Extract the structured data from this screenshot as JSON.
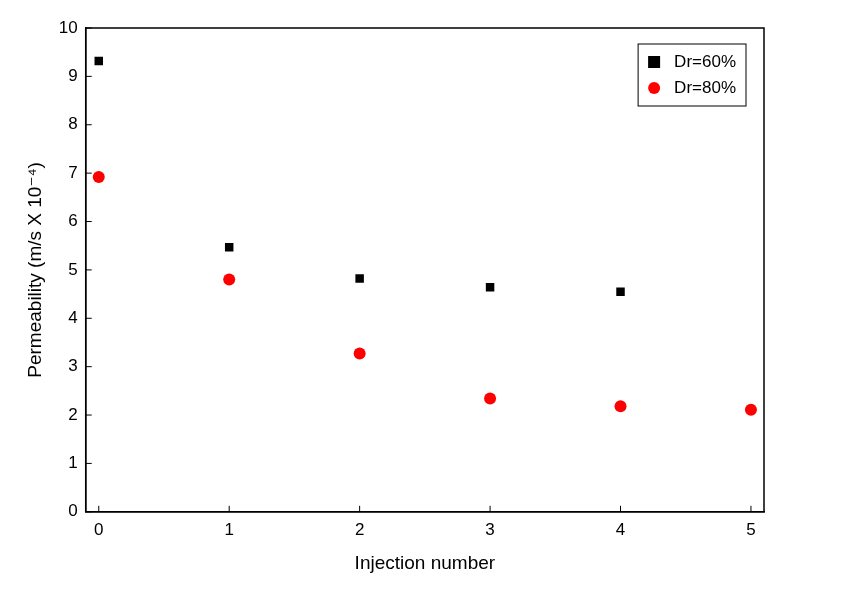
{
  "chart_data": {
    "type": "scatter",
    "x_label": "Injection number",
    "y_label": "Permeability (m/s X 10⁻⁴)",
    "x": [
      0,
      1,
      2,
      3,
      4,
      5
    ],
    "series": [
      {
        "name": "Dr=60%",
        "color": "#000000",
        "marker": "square",
        "values": [
          9.32,
          5.47,
          4.82,
          4.64,
          4.55,
          null
        ]
      },
      {
        "name": "Dr=80%",
        "color": "#ff0000",
        "marker": "circle",
        "values": [
          6.92,
          4.8,
          3.27,
          2.34,
          2.18,
          2.11
        ]
      }
    ],
    "xlim": [
      -0.1,
      5.1
    ],
    "xticks": [
      0,
      1,
      2,
      3,
      4,
      5
    ],
    "ylim": [
      0,
      10
    ],
    "yticks": [
      0,
      1,
      2,
      3,
      4,
      5,
      6,
      7,
      8,
      9,
      10
    ],
    "grid": false,
    "legend": "upper right"
  }
}
